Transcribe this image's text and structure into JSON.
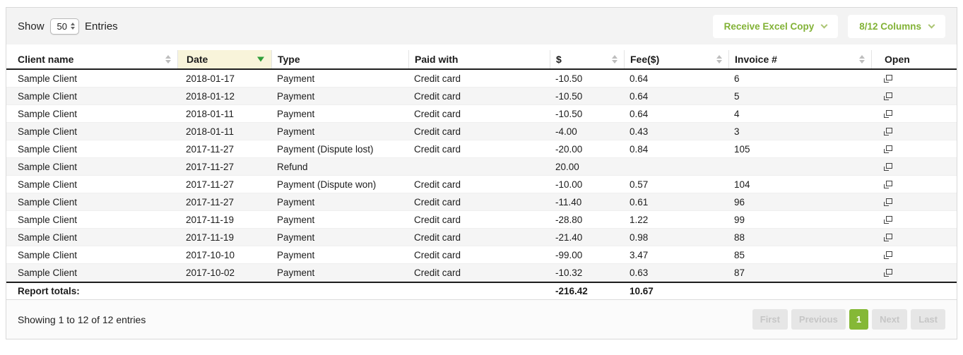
{
  "topbar": {
    "show_label": "Show",
    "page_size": "50",
    "entries_label": "Entries",
    "excel_button": "Receive Excel Copy",
    "columns_button": "8/12 Columns"
  },
  "colors": {
    "accent_green": "#85b836",
    "sorted_arrow_green": "#2f9e3a",
    "sorted_column_bg": "#f8f4da",
    "topbar_bg": "#f3f3f3"
  },
  "table": {
    "columns": [
      {
        "label": "Client name",
        "sortable": true
      },
      {
        "label": "Date",
        "sortable": true,
        "sorted": "desc"
      },
      {
        "label": "Type",
        "sortable": false
      },
      {
        "label": "Paid with",
        "sortable": false
      },
      {
        "label": "$",
        "sortable": true
      },
      {
        "label": "Fee($)",
        "sortable": true
      },
      {
        "label": "Invoice #",
        "sortable": true
      },
      {
        "label": "Open",
        "sortable": false
      }
    ],
    "rows": [
      {
        "client": "Sample Client",
        "date": "2018-01-17",
        "type": "Payment",
        "paid_with": "Credit card",
        "amount": "-10.50",
        "fee": "0.64",
        "invoice": "6"
      },
      {
        "client": "Sample Client",
        "date": "2018-01-12",
        "type": "Payment",
        "paid_with": "Credit card",
        "amount": "-10.50",
        "fee": "0.64",
        "invoice": "5"
      },
      {
        "client": "Sample Client",
        "date": "2018-01-11",
        "type": "Payment",
        "paid_with": "Credit card",
        "amount": "-10.50",
        "fee": "0.64",
        "invoice": "4"
      },
      {
        "client": "Sample Client",
        "date": "2018-01-11",
        "type": "Payment",
        "paid_with": "Credit card",
        "amount": "-4.00",
        "fee": "0.43",
        "invoice": "3"
      },
      {
        "client": "Sample Client",
        "date": "2017-11-27",
        "type": "Payment (Dispute lost)",
        "paid_with": "Credit card",
        "amount": "-20.00",
        "fee": "0.84",
        "invoice": "105"
      },
      {
        "client": "Sample Client",
        "date": "2017-11-27",
        "type": "Refund",
        "paid_with": "",
        "amount": "20.00",
        "fee": "",
        "invoice": ""
      },
      {
        "client": "Sample Client",
        "date": "2017-11-27",
        "type": "Payment (Dispute won)",
        "paid_with": "Credit card",
        "amount": "-10.00",
        "fee": "0.57",
        "invoice": "104"
      },
      {
        "client": "Sample Client",
        "date": "2017-11-27",
        "type": "Payment",
        "paid_with": "Credit card",
        "amount": "-11.40",
        "fee": "0.61",
        "invoice": "96"
      },
      {
        "client": "Sample Client",
        "date": "2017-11-19",
        "type": "Payment",
        "paid_with": "Credit card",
        "amount": "-28.80",
        "fee": "1.22",
        "invoice": "99"
      },
      {
        "client": "Sample Client",
        "date": "2017-11-19",
        "type": "Payment",
        "paid_with": "Credit card",
        "amount": "-21.40",
        "fee": "0.98",
        "invoice": "88"
      },
      {
        "client": "Sample Client",
        "date": "2017-10-10",
        "type": "Payment",
        "paid_with": "Credit card",
        "amount": "-99.00",
        "fee": "3.47",
        "invoice": "85"
      },
      {
        "client": "Sample Client",
        "date": "2017-10-02",
        "type": "Payment",
        "paid_with": "Credit card",
        "amount": "-10.32",
        "fee": "0.63",
        "invoice": "87"
      }
    ],
    "totals": {
      "label": "Report totals:",
      "amount": "-216.42",
      "fee": "10.67"
    }
  },
  "footer": {
    "showing_text": "Showing 1 to 12 of 12 entries",
    "pagination": [
      {
        "label": "First",
        "state": "disabled"
      },
      {
        "label": "Previous",
        "state": "disabled"
      },
      {
        "label": "1",
        "state": "active"
      },
      {
        "label": "Next",
        "state": "disabled"
      },
      {
        "label": "Last",
        "state": "disabled"
      }
    ]
  }
}
